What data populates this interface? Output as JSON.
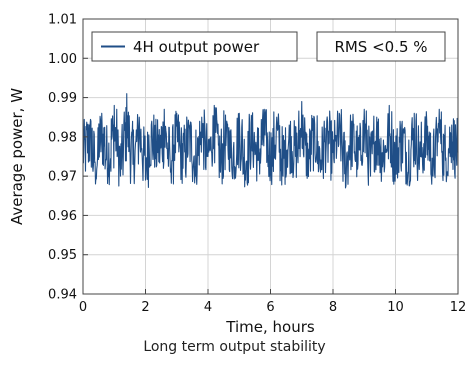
{
  "caption": "Long term output stability",
  "chart_data": {
    "type": "line",
    "xlabel": "Time, hours",
    "ylabel": "Average power, W",
    "xlim": [
      0,
      12
    ],
    "ylim": [
      0.94,
      1.01
    ],
    "xticks": [
      "0",
      "2",
      "4",
      "6",
      "8",
      "10",
      "12"
    ],
    "yticks": [
      "0.94",
      "0.95",
      "0.96",
      "0.97",
      "0.98",
      "0.99",
      "1.00",
      "1.01"
    ],
    "grid": true,
    "legend_position": "top-left",
    "series": [
      {
        "name": "4H output power",
        "color": "#1f4e87",
        "mean": 0.977,
        "min": 0.967,
        "max": 0.991,
        "x": [
          0,
          0.2,
          0.4,
          0.6,
          0.8,
          1,
          1.2,
          1.4,
          1.6,
          1.8,
          2,
          2.2,
          2.4,
          2.6,
          2.8,
          3,
          3.2,
          3.4,
          3.6,
          3.8,
          4,
          4.2,
          4.4,
          4.6,
          4.8,
          5,
          5.2,
          5.4,
          5.6,
          5.8,
          6,
          6.2,
          6.4,
          6.6,
          6.8,
          7,
          7.2,
          7.4,
          7.6,
          7.8,
          8,
          8.2,
          8.4,
          8.6,
          8.8,
          9,
          9.2,
          9.4,
          9.6,
          9.8,
          10,
          10.2,
          10.4,
          10.6,
          10.8,
          11,
          11.2,
          11.4,
          11.6,
          11.8,
          12
        ],
        "values": [
          0.975,
          0.983,
          0.968,
          0.986,
          0.972,
          0.988,
          0.97,
          0.991,
          0.973,
          0.985,
          0.969,
          0.984,
          0.976,
          0.987,
          0.971,
          0.986,
          0.972,
          0.983,
          0.97,
          0.985,
          0.975,
          0.988,
          0.971,
          0.984,
          0.973,
          0.986,
          0.969,
          0.984,
          0.974,
          0.987,
          0.972,
          0.985,
          0.97,
          0.983,
          0.975,
          0.989,
          0.972,
          0.985,
          0.971,
          0.984,
          0.976,
          0.986,
          0.967,
          0.984,
          0.973,
          0.987,
          0.97,
          0.985,
          0.974,
          0.988,
          0.972,
          0.983,
          0.971,
          0.986,
          0.975,
          0.984,
          0.97,
          0.987,
          0.974,
          0.983,
          0.976
        ]
      }
    ],
    "annotations": [
      "RMS <0.5 %"
    ]
  }
}
